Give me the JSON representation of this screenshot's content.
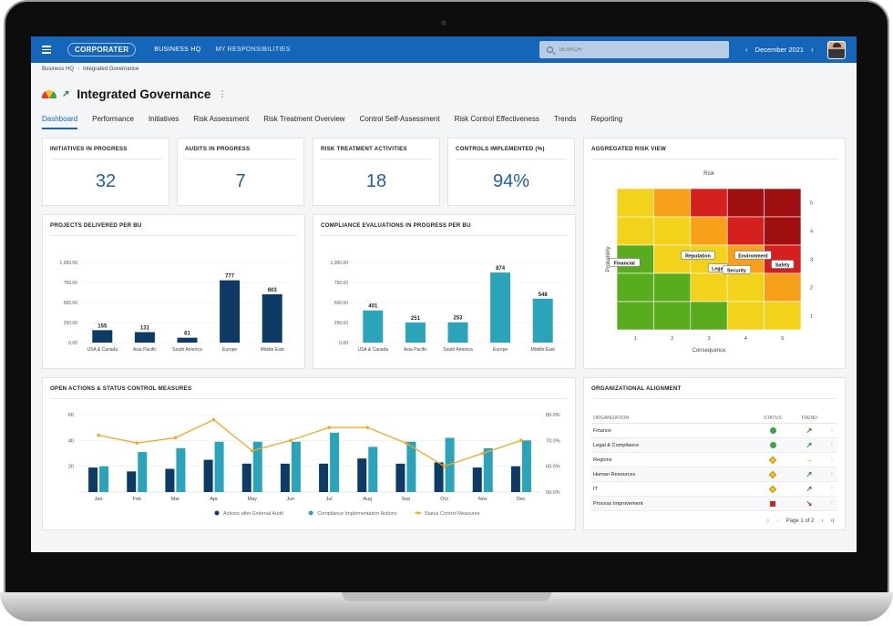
{
  "topbar": {
    "logo": "CORPORATER",
    "nav": [
      "BUSINESS HQ",
      "MY RESPONSIBILITIES"
    ],
    "search_placeholder": "SEARCH",
    "period": "December 2021"
  },
  "breadcrumb": [
    "Business HQ",
    "Integrated Governance"
  ],
  "page_title": "Integrated Governance",
  "tabs": [
    "Dashboard",
    "Performance",
    "Initiatives",
    "Risk Assessment",
    "Risk Treatment Overview",
    "Control Self-Assessment",
    "Risk Control Effectiveness",
    "Trends",
    "Reporting"
  ],
  "active_tab": "Dashboard",
  "kpis": [
    {
      "label": "INITIATIVES IN PROGRESS",
      "value": "32"
    },
    {
      "label": "AUDITS IN PROGRESS",
      "value": "7"
    },
    {
      "label": "RISK TREATMENT ACTIVITIES",
      "value": "18"
    },
    {
      "label": "CONTROLS IMPLEMENTED (%)",
      "value": "94%"
    }
  ],
  "projects_chart": {
    "title": "PROJECTS DELIVERED PER BU",
    "chart_data": {
      "type": "bar",
      "categories": [
        "USA & Canada",
        "Asia Pacific",
        "South America",
        "Europe",
        "Middle East"
      ],
      "values": [
        155,
        131,
        61,
        777,
        603
      ],
      "ylim": [
        0,
        1000
      ],
      "yticks": [
        "0.00",
        "250.00",
        "500.00",
        "750.00",
        "1,000.00"
      ],
      "color": "#0d3b66"
    }
  },
  "compliance_chart": {
    "title": "COMPLIANCE EVALUATIONS IN PROGRESS PER BU",
    "chart_data": {
      "type": "bar",
      "categories": [
        "USA & Canada",
        "Asia Pacific",
        "South America",
        "Europe",
        "Middle East"
      ],
      "values": [
        401,
        251,
        253,
        874,
        548
      ],
      "ylim": [
        0,
        1000
      ],
      "yticks": [
        "0.00",
        "250.00",
        "500.00",
        "750.00",
        "1,000.00"
      ],
      "color": "#2ba3b8"
    }
  },
  "risk_view": {
    "title": "AGGREGATED RISK VIEW",
    "chart_data": {
      "type": "heatmap",
      "title": "Risk",
      "xlabel": "Consequence",
      "ylabel": "Probability",
      "x_ticks": [
        "1",
        "2",
        "3",
        "4",
        "5"
      ],
      "y_ticks": [
        "1",
        "2",
        "3",
        "4",
        "5"
      ],
      "rows_top_to_bottom": [
        [
          "#f2d21b",
          "#f7a11a",
          "#d62020",
          "#a01010",
          "#a01010"
        ],
        [
          "#f2d21b",
          "#f2d21b",
          "#f7a11a",
          "#d62020",
          "#a01010"
        ],
        [
          "#5aac1f",
          "#f2d21b",
          "#f2d21b",
          "#f7a11a",
          "#d62020"
        ],
        [
          "#5aac1f",
          "#5aac1f",
          "#f2d21b",
          "#f2d21b",
          "#f7a11a"
        ],
        [
          "#5aac1f",
          "#5aac1f",
          "#5aac1f",
          "#f2d21b",
          "#f2d21b"
        ]
      ],
      "labels": [
        {
          "text": "Financial",
          "consequence": 1,
          "probability": 3
        },
        {
          "text": "Reputation",
          "consequence": 3,
          "probability": 3
        },
        {
          "text": "Environment",
          "consequence": 4,
          "probability": 3
        },
        {
          "text": "Legal",
          "consequence": 3,
          "probability": 3
        },
        {
          "text": "Security",
          "consequence": 4,
          "probability": 3
        },
        {
          "text": "Safety",
          "consequence": 5,
          "probability": 3
        }
      ]
    }
  },
  "actions_chart": {
    "title": "OPEN ACTIONS & STATUS CONTROL MEASURES",
    "chart_data": {
      "type": "bar",
      "categories": [
        "Jan",
        "Feb",
        "Mar",
        "Apr",
        "May",
        "Jun",
        "Jul",
        "Aug",
        "Sep",
        "Oct",
        "Nov",
        "Dec"
      ],
      "series": [
        {
          "name": "Actions after External Audit",
          "type": "bar",
          "axis": "left",
          "values": [
            19,
            16,
            18,
            25,
            22,
            22,
            22,
            26,
            22,
            23,
            19,
            20
          ],
          "color": "#0d3b66"
        },
        {
          "name": "Compliance Implementation Actions",
          "type": "bar",
          "axis": "left",
          "values": [
            20,
            31,
            34,
            39,
            39,
            39,
            46,
            35,
            39,
            42,
            34,
            40
          ],
          "color": "#2ba3b8"
        },
        {
          "name": "Status Control Measures",
          "type": "line",
          "axis": "right",
          "values": [
            72,
            69,
            71,
            78,
            66,
            70,
            75,
            75,
            69,
            60,
            65,
            70
          ],
          "color": "#f5a623"
        }
      ],
      "ylim": [
        0,
        60
      ],
      "yticks": [
        "20",
        "40",
        "60"
      ],
      "y2lim": [
        50,
        80
      ],
      "y2ticks": [
        "50.0%",
        "60.0%",
        "70.0%",
        "80.0%"
      ]
    }
  },
  "org_alignment": {
    "title": "ORGANIZATIONAL ALIGNMENT",
    "headers": [
      "ORGANIZATION",
      "STATUS",
      "TREND"
    ],
    "rows": [
      {
        "name": "Finance",
        "status": "green",
        "trend": "↗",
        "trend_color": "#2e7d32"
      },
      {
        "name": "Legal & Compliance",
        "status": "green",
        "trend": "↗",
        "trend_color": "#2e7d32"
      },
      {
        "name": "Regions",
        "status": "yellow",
        "trend": "→",
        "trend_color": "#e0a800"
      },
      {
        "name": "Human Resources",
        "status": "yellow",
        "trend": "↗",
        "trend_color": "#2e7d32"
      },
      {
        "name": "IT",
        "status": "yellow",
        "trend": "↗",
        "trend_color": "#2e7d32"
      },
      {
        "name": "Process Improvement",
        "status": "red",
        "trend": "↘",
        "trend_color": "#c62828"
      }
    ],
    "pager": "Page 1 of 2"
  }
}
